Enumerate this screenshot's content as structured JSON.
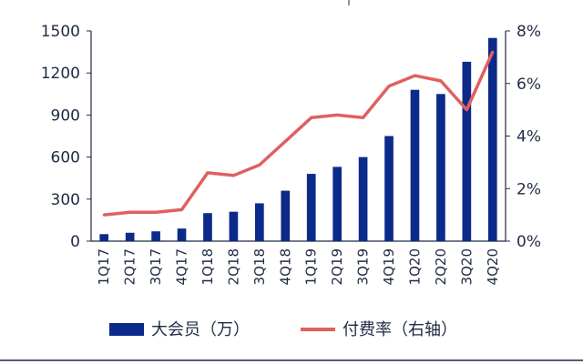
{
  "chart_data": {
    "type": "bar",
    "categories": [
      "1Q17",
      "2Q17",
      "3Q17",
      "4Q17",
      "1Q18",
      "2Q18",
      "3Q18",
      "4Q18",
      "1Q19",
      "2Q19",
      "3Q19",
      "4Q19",
      "1Q20",
      "2Q20",
      "3Q20",
      "4Q20"
    ],
    "series": [
      {
        "name": "大会员（万）",
        "type": "bar",
        "axis": "left",
        "color": "#0b2a8a",
        "values": [
          50,
          60,
          70,
          90,
          200,
          210,
          270,
          360,
          480,
          530,
          600,
          750,
          1080,
          1050,
          1280,
          1450
        ]
      },
      {
        "name": "付费率（右轴）",
        "type": "line",
        "axis": "right",
        "color": "#e06060",
        "values": [
          1.0,
          1.1,
          1.1,
          1.2,
          2.6,
          2.5,
          2.9,
          3.8,
          4.7,
          4.8,
          4.7,
          5.9,
          6.3,
          6.1,
          5.0,
          7.2
        ]
      }
    ],
    "y_left": {
      "lim": [
        0,
        1500
      ],
      "ticks": [
        "0",
        "300",
        "600",
        "900",
        "1200",
        "1500"
      ]
    },
    "y_right": {
      "lim": [
        0,
        8
      ],
      "ticks": [
        "0%",
        "2%",
        "4%",
        "6%",
        "8%"
      ]
    },
    "grid": false,
    "legend": "bottom"
  }
}
